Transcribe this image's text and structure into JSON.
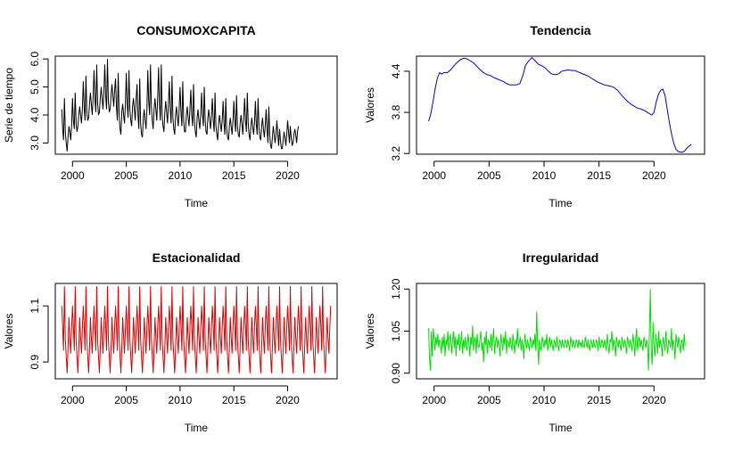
{
  "chart_data": [
    {
      "type": "line",
      "title": "CONSUMOXCAPITA",
      "xlabel": "Time",
      "ylabel": "Serie de tiempo",
      "xlim": [
        1998.4,
        2024.6
      ],
      "ylim": [
        2.6,
        6.1
      ],
      "xticks": [
        2000,
        2005,
        2010,
        2015,
        2020
      ],
      "yticks": [
        3.0,
        4.0,
        5.0,
        6.0
      ],
      "ytick_labels": [
        "3.0",
        "4.0",
        "5.0",
        "6.0"
      ],
      "series": [
        {
          "color": "#000000",
          "x_start": 1999.0,
          "x_step": 0.08333333,
          "y": [
            4.2,
            3.5,
            3.1,
            4.6,
            3.4,
            3.0,
            2.7,
            3.2,
            3.6,
            3.4,
            3.1,
            3.6,
            4.6,
            3.8,
            3.5,
            4.8,
            3.7,
            3.4,
            3.6,
            4.0,
            4.3,
            4.0,
            3.7,
            4.2,
            5.2,
            4.3,
            3.8,
            5.4,
            4.1,
            3.8,
            3.9,
            4.4,
            4.8,
            4.4,
            4.0,
            4.6,
            5.6,
            4.6,
            4.1,
            5.8,
            4.4,
            4.0,
            4.1,
            4.6,
            5.0,
            4.6,
            4.2,
            4.8,
            5.8,
            4.7,
            4.2,
            6.0,
            4.5,
            4.1,
            4.2,
            4.7,
            5.1,
            4.7,
            4.3,
            4.9,
            5.3,
            4.3,
            3.8,
            5.5,
            4.0,
            3.5,
            3.3,
            4.1,
            4.4,
            4.0,
            3.7,
            4.4,
            5.5,
            4.4,
            3.9,
            5.6,
            4.2,
            3.8,
            3.6,
            4.3,
            4.6,
            4.2,
            3.8,
            4.6,
            5.1,
            4.0,
            3.5,
            5.3,
            3.7,
            3.3,
            3.2,
            3.9,
            4.2,
            3.8,
            3.5,
            4.2,
            5.6,
            4.5,
            4.0,
            5.8,
            4.3,
            3.8,
            3.5,
            4.2,
            4.6,
            4.2,
            3.8,
            4.6,
            5.7,
            4.4,
            3.8,
            5.8,
            4.0,
            3.6,
            3.4,
            4.1,
            4.5,
            4.1,
            3.7,
            4.4,
            5.2,
            4.2,
            3.7,
            5.4,
            3.9,
            3.5,
            3.3,
            4.0,
            4.3,
            3.9,
            3.6,
            4.2,
            5.0,
            4.1,
            3.6,
            5.2,
            3.8,
            3.4,
            3.4,
            4.0,
            4.3,
            3.9,
            3.6,
            4.2,
            4.9,
            4.0,
            3.6,
            5.1,
            3.8,
            3.4,
            3.2,
            3.9,
            4.2,
            3.8,
            3.5,
            4.0,
            4.8,
            4.0,
            3.6,
            5.0,
            3.8,
            3.4,
            3.3,
            3.9,
            4.2,
            3.8,
            3.5,
            4.0,
            4.6,
            3.8,
            3.4,
            4.8,
            3.6,
            3.3,
            3.1,
            3.7,
            4.0,
            3.7,
            3.4,
            3.8,
            4.5,
            3.7,
            3.3,
            4.6,
            3.5,
            3.2,
            3.1,
            3.6,
            3.9,
            3.6,
            3.3,
            3.8,
            4.5,
            3.8,
            3.4,
            4.7,
            3.6,
            3.3,
            3.2,
            3.7,
            4.0,
            3.7,
            3.3,
            3.9,
            4.6,
            3.8,
            3.4,
            4.8,
            3.7,
            3.3,
            3.1,
            3.6,
            3.9,
            3.6,
            3.3,
            3.7,
            4.5,
            3.7,
            3.3,
            4.6,
            3.6,
            3.2,
            3.1,
            3.6,
            3.9,
            3.5,
            3.2,
            3.6,
            4.2,
            3.5,
            3.0,
            4.3,
            3.3,
            2.9,
            2.8,
            3.2,
            3.6,
            3.3,
            3.0,
            3.3,
            3.8,
            3.3,
            2.9,
            3.5,
            3.1,
            2.8,
            2.8,
            3.1,
            3.4,
            3.2,
            2.9,
            3.3,
            3.8,
            3.4,
            3.0,
            3.6,
            3.2,
            2.9,
            3.0,
            3.3,
            3.5,
            3.3,
            3.0,
            3.4,
            3.6
          ]
        }
      ]
    },
    {
      "type": "line",
      "title": "Tendencia",
      "xlabel": "Time",
      "ylabel": "Valores",
      "xlim": [
        1998.4,
        2024.6
      ],
      "ylim": [
        3.19,
        4.62
      ],
      "xticks": [
        2000,
        2005,
        2010,
        2015,
        2020
      ],
      "yticks": [
        3.2,
        3.8,
        4.4
      ],
      "ytick_labels": [
        "3.2",
        "3.8",
        "4.4"
      ],
      "series": [
        {
          "color": "#0000cd",
          "x": [
            1999.5,
            1999.7,
            1999.9,
            2000.1,
            2000.3,
            2000.5,
            2000.7,
            2000.9,
            2001.2,
            2001.5,
            2001.8,
            2002.1,
            2002.4,
            2002.7,
            2003.0,
            2003.3,
            2003.6,
            2003.9,
            2004.2,
            2004.5,
            2004.8,
            2005.1,
            2005.4,
            2005.7,
            2006.0,
            2006.3,
            2006.6,
            2006.9,
            2007.2,
            2007.5,
            2007.8,
            2008.1,
            2008.3,
            2008.6,
            2008.9,
            2009.2,
            2009.5,
            2009.8,
            2010.1,
            2010.4,
            2010.7,
            2011.0,
            2011.3,
            2011.6,
            2011.9,
            2012.2,
            2012.5,
            2012.8,
            2013.1,
            2013.4,
            2013.7,
            2014.0,
            2014.3,
            2014.6,
            2014.9,
            2015.2,
            2015.5,
            2015.8,
            2016.1,
            2016.4,
            2016.7,
            2017.0,
            2017.3,
            2017.6,
            2017.9,
            2018.2,
            2018.5,
            2018.8,
            2019.1,
            2019.4,
            2019.6,
            2019.8,
            2020.0,
            2020.2,
            2020.4,
            2020.6,
            2020.8,
            2021.0,
            2021.2,
            2021.4,
            2021.6,
            2021.8,
            2022.0,
            2022.2,
            2022.4,
            2022.6,
            2022.8,
            2023.0,
            2023.2,
            2023.4
          ],
          "y": [
            3.67,
            3.78,
            3.95,
            4.15,
            4.3,
            4.38,
            4.36,
            4.38,
            4.38,
            4.42,
            4.48,
            4.53,
            4.57,
            4.59,
            4.58,
            4.55,
            4.52,
            4.47,
            4.42,
            4.38,
            4.35,
            4.34,
            4.31,
            4.29,
            4.27,
            4.25,
            4.22,
            4.2,
            4.2,
            4.2,
            4.22,
            4.35,
            4.48,
            4.55,
            4.6,
            4.55,
            4.5,
            4.48,
            4.45,
            4.4,
            4.36,
            4.35,
            4.36,
            4.4,
            4.41,
            4.42,
            4.41,
            4.41,
            4.39,
            4.37,
            4.35,
            4.33,
            4.3,
            4.27,
            4.24,
            4.22,
            4.2,
            4.19,
            4.18,
            4.16,
            4.12,
            4.06,
            4.01,
            3.96,
            3.92,
            3.89,
            3.86,
            3.85,
            3.83,
            3.8,
            3.78,
            3.76,
            3.8,
            3.95,
            4.06,
            4.12,
            4.14,
            4.05,
            3.85,
            3.65,
            3.48,
            3.35,
            3.26,
            3.23,
            3.22,
            3.22,
            3.24,
            3.28,
            3.31,
            3.33
          ]
        }
      ]
    },
    {
      "type": "line",
      "title": "Estacionalidad",
      "xlabel": "Time",
      "ylabel": "Valores",
      "xlim": [
        1998.4,
        2024.6
      ],
      "ylim": [
        0.84,
        1.18
      ],
      "xticks": [
        2000,
        2005,
        2010,
        2015,
        2020
      ],
      "yticks": [
        0.9,
        1.1
      ],
      "ytick_labels": [
        "0.9",
        "1.1"
      ],
      "series": [
        {
          "color": "#e00000",
          "x_start": 1999.0,
          "x_step": 0.08333333,
          "seasonal_pattern": [
            1.1,
            1.03,
            0.94,
            1.17,
            0.98,
            0.92,
            0.86,
            0.95,
            1.06,
            0.99,
            0.93,
            1.02
          ],
          "n_points": 301
        }
      ]
    },
    {
      "type": "line",
      "title": "Irregularidad",
      "xlabel": "Time",
      "ylabel": "Valores",
      "xlim": [
        1998.4,
        2024.6
      ],
      "ylim": [
        0.88,
        1.22
      ],
      "xticks": [
        2000,
        2005,
        2010,
        2015,
        2020
      ],
      "yticks": [
        0.9,
        1.05,
        1.2
      ],
      "ytick_labels": [
        "0.90",
        "1.05",
        "1.20"
      ],
      "series": [
        {
          "color": "#00e000",
          "x_start": 1999.5,
          "x_step": 0.08333333,
          "y": [
            1.06,
            0.95,
            0.91,
            1.05,
            0.96,
            1.06,
            1.02,
            0.98,
            1.03,
            1.0,
            1.04,
            0.99,
            1.02,
            1.01,
            0.97,
            1.03,
            0.99,
            1.04,
            0.96,
            1.02,
            1.0,
            1.05,
            0.98,
            1.02,
            1.04,
            0.97,
            1.01,
            1.05,
            0.99,
            1.03,
            0.96,
            1.02,
            1.0,
            1.04,
            0.98,
            1.01,
            1.05,
            0.97,
            1.02,
            0.99,
            1.03,
            1.0,
            0.98,
            1.04,
            1.01,
            0.96,
            1.03,
            1.0,
            1.07,
            0.98,
            1.01,
            1.03,
            0.97,
            1.04,
            1.0,
            0.99,
            1.02,
            1.05,
            0.98,
            1.01,
            0.94,
            1.03,
            1.0,
            1.05,
            0.97,
            1.02,
            1.01,
            0.99,
            1.04,
            0.98,
            1.02,
            1.06,
            0.97,
            1.01,
            1.03,
            0.99,
            1.02,
            1.0,
            0.96,
            1.04,
            1.01,
            0.98,
            1.03,
            1.0,
            1.05,
            0.97,
            1.02,
            1.01,
            0.99,
            1.03,
            1.0,
            0.98,
            1.04,
            1.01,
            0.97,
            1.02,
            1.0,
            1.06,
            0.99,
            1.01,
            1.03,
            0.98,
            1.02,
            1.0,
            0.95,
            1.04,
            1.01,
            0.99,
            1.02,
            1.0,
            0.98,
            1.03,
            1.01,
            0.99,
            1.02,
            1.0,
            1.04,
            0.98,
            1.12,
            1.0,
            0.93,
            1.02,
            1.0,
            0.98,
            1.03,
            1.01,
            0.99,
            1.02,
            1.0,
            1.04,
            0.98,
            1.01,
            1.03,
            0.99,
            1.02,
            1.0,
            0.98,
            1.02,
            1.01,
            0.99,
            1.03,
            1.0,
            0.98,
            1.02,
            1.01,
            0.99,
            1.02,
            1.0,
            0.99,
            1.02,
            1.01,
            0.99,
            1.02,
            1.0,
            0.98,
            1.03,
            1.01,
            0.99,
            1.02,
            1.0,
            0.99,
            1.02,
            1.01,
            0.99,
            1.02,
            1.0,
            1.01,
            0.99,
            1.02,
            1.0,
            0.99,
            1.03,
            1.01,
            0.99,
            1.02,
            1.0,
            0.98,
            1.02,
            1.01,
            0.99,
            1.02,
            1.0,
            0.99,
            1.02,
            1.01,
            0.98,
            1.03,
            1.0,
            0.99,
            1.02,
            1.01,
            0.99,
            1.02,
            1.0,
            0.98,
            1.04,
            1.0,
            0.97,
            1.02,
            1.01,
            1.05,
            0.98,
            1.02,
            1.0,
            0.96,
            1.03,
            1.01,
            0.99,
            1.02,
            1.0,
            0.98,
            1.03,
            1.01,
            0.99,
            1.02,
            1.0,
            0.97,
            1.03,
            1.01,
            0.99,
            1.02,
            1.0,
            0.98,
            1.04,
            1.01,
            0.96,
            1.02,
            1.06,
            0.98,
            1.01,
            1.03,
            0.99,
            1.02,
            1.0,
            0.98,
            1.03,
            1.01,
            0.99,
            1.02,
            1.0,
            0.91,
            1.05,
            1.2,
            0.98,
            0.93,
            1.08,
            1.0,
            0.96,
            1.04,
            1.01,
            0.97,
            1.05,
            0.99,
            1.02,
            1.0,
            0.96,
            1.03,
            1.01,
            0.98,
            1.05,
            1.0,
            0.97,
            1.02,
            1.01,
            0.99,
            1.06,
            0.98,
            1.02,
            1.0,
            0.95,
            1.04,
            1.01,
            0.99,
            1.03,
            1.0,
            0.97,
            1.02,
            1.01,
            0.98,
            1.04,
            1.0
          ]
        }
      ]
    }
  ]
}
